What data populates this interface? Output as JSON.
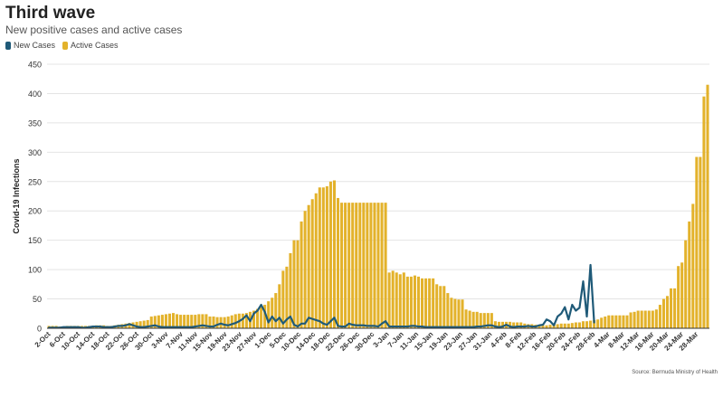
{
  "title": "Third wave",
  "subtitle": "New positive cases and active cases",
  "source": "Source: Bermuda Ministry of Health",
  "colors": {
    "active": "#e3b22b",
    "new": "#1f5a78",
    "grid": "#e4e4e4",
    "axis": "#333333"
  },
  "chart_data": {
    "type": "bar",
    "title": "Third wave",
    "subtitle": "New positive cases and active cases",
    "ylabel": "Covid-19 Infections",
    "xlabel": "",
    "ylim": [
      0,
      450
    ],
    "yticks": [
      0,
      50,
      100,
      150,
      200,
      250,
      300,
      350,
      400,
      450
    ],
    "grid": true,
    "legend_position": "top-left",
    "x_tick_labels": [
      "2-Oct",
      "6-Oct",
      "10-Oct",
      "14-Oct",
      "18-Oct",
      "22-Oct",
      "26-Oct",
      "30-Oct",
      "3-Nov",
      "7-Nov",
      "11-Nov",
      "15-Nov",
      "19-Nov",
      "23-Nov",
      "27-Nov",
      "1-Dec",
      "5-Dec",
      "10-Dec",
      "14-Dec",
      "18-Dec",
      "22-Dec",
      "26-Dec",
      "30-Dec",
      "3-Jan",
      "7-Jan",
      "11-Jan",
      "15-Jan",
      "19-Jan",
      "23-Jan",
      "27-Jan",
      "31-Jan",
      "4-Feb",
      "8-Feb",
      "12-Feb",
      "16-Feb",
      "20-Feb",
      "24-Feb",
      "28-Feb",
      "4-Mar",
      "8-Mar",
      "12-Mar",
      "16-Mar",
      "20-Mar",
      "24-Mar",
      "28-Mar"
    ],
    "series": [
      {
        "name": "New Cases",
        "kind": "line",
        "values": [
          1,
          1,
          1,
          1,
          2,
          2,
          2,
          2,
          2,
          1,
          1,
          2,
          3,
          3,
          3,
          2,
          2,
          2,
          3,
          4,
          4,
          5,
          7,
          5,
          3,
          2,
          2,
          3,
          4,
          5,
          3,
          2,
          2,
          2,
          2,
          2,
          2,
          2,
          2,
          2,
          3,
          4,
          5,
          4,
          3,
          3,
          6,
          8,
          6,
          5,
          7,
          9,
          12,
          16,
          22,
          12,
          25,
          30,
          40,
          28,
          10,
          20,
          12,
          18,
          8,
          15,
          20,
          6,
          3,
          8,
          8,
          18,
          16,
          14,
          12,
          8,
          6,
          12,
          18,
          4,
          3,
          3,
          8,
          6,
          5,
          5,
          5,
          4,
          4,
          4,
          3,
          8,
          12,
          3,
          3,
          3,
          3,
          3,
          3,
          4,
          4,
          3,
          3,
          2,
          2,
          2,
          2,
          2,
          2,
          2,
          2,
          2,
          2,
          2,
          2,
          2,
          2,
          3,
          3,
          4,
          5,
          5,
          3,
          2,
          3,
          6,
          3,
          2,
          3,
          3,
          3,
          4,
          3,
          3,
          5,
          6,
          15,
          12,
          5,
          20,
          25,
          36,
          15,
          40,
          30,
          35,
          80,
          20,
          108,
          10
        ]
      },
      {
        "name": "Active Cases",
        "kind": "bar",
        "values": [
          4,
          4,
          4,
          3,
          3,
          4,
          4,
          4,
          4,
          4,
          4,
          4,
          4,
          5,
          5,
          5,
          4,
          4,
          5,
          6,
          7,
          8,
          9,
          10,
          11,
          12,
          13,
          14,
          20,
          21,
          22,
          23,
          24,
          25,
          26,
          24,
          23,
          23,
          23,
          23,
          23,
          24,
          24,
          24,
          20,
          20,
          19,
          19,
          19,
          20,
          22,
          24,
          25,
          25,
          26,
          28,
          30,
          33,
          36,
          40,
          46,
          52,
          60,
          75,
          98,
          105,
          128,
          150,
          150,
          182,
          200,
          210,
          220,
          230,
          240,
          240,
          242,
          250,
          252,
          222,
          214,
          214,
          214,
          214,
          214,
          214,
          214,
          214,
          214,
          214,
          214,
          214,
          214,
          95,
          98,
          95,
          92,
          95,
          88,
          88,
          90,
          88,
          85,
          85,
          85,
          85,
          75,
          72,
          72,
          60,
          52,
          50,
          49,
          49,
          32,
          30,
          28,
          28,
          26,
          26,
          26,
          26,
          12,
          11,
          11,
          11,
          11,
          10,
          10,
          10,
          8,
          7,
          7,
          6,
          6,
          5,
          5,
          6,
          7,
          7,
          8,
          8,
          8,
          9,
          10,
          10,
          12,
          12,
          13,
          14,
          15,
          18,
          20,
          22,
          22,
          22,
          22,
          22,
          22,
          27,
          28,
          30,
          30,
          30,
          30,
          30,
          32,
          40,
          50,
          55,
          68,
          68,
          106,
          112,
          150,
          182,
          212,
          292,
          292,
          395,
          415
        ]
      }
    ]
  }
}
